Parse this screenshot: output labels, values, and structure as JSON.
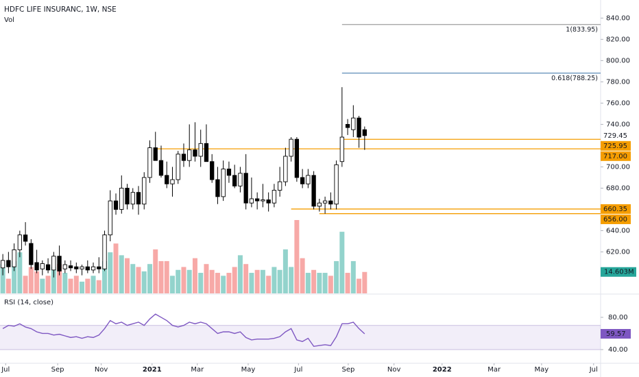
{
  "chart_data": {
    "type": "candlestick",
    "title": "HDFC LIFE INSURANC, 1W, NSE",
    "volume_label": "Vol",
    "x": [
      0,
      1,
      2,
      3,
      4,
      5,
      6,
      7,
      8,
      9,
      10,
      11,
      12,
      13,
      14,
      15,
      16,
      17,
      18,
      19,
      20,
      21,
      22,
      23,
      24,
      25,
      26,
      27,
      28,
      29,
      30,
      31,
      32,
      33,
      34,
      35,
      36,
      37,
      38,
      39,
      40,
      41,
      42,
      43,
      44,
      45,
      46,
      47,
      48,
      49,
      50,
      51,
      52,
      53,
      54,
      55,
      56,
      57,
      58,
      59,
      60,
      61,
      62,
      63,
      64
    ],
    "xlim": [
      -0.5,
      105.5
    ],
    "xticks": [
      {
        "value": 0.5,
        "label": "Jul"
      },
      {
        "value": 9.7,
        "label": "Sep"
      },
      {
        "value": 17.4,
        "label": "Nov"
      },
      {
        "value": 26.4,
        "label": "2021"
      },
      {
        "value": 34.4,
        "label": "Mar"
      },
      {
        "value": 43.4,
        "label": "May"
      },
      {
        "value": 52.3,
        "label": "Jul"
      },
      {
        "value": 61.1,
        "label": "Sep"
      },
      {
        "value": 69.2,
        "label": "Nov"
      },
      {
        "value": 77.7,
        "label": "2022"
      },
      {
        "value": 86.9,
        "label": "Mar"
      },
      {
        "value": 95.3,
        "label": "May"
      },
      {
        "value": 104.5,
        "label": "Jul"
      }
    ],
    "ylim": [
      581,
      857
    ],
    "yticks": [
      {
        "value": 620,
        "label": "620.00"
      },
      {
        "value": 640,
        "label": "640.00"
      },
      {
        "value": 680,
        "label": "680.00"
      },
      {
        "value": 700,
        "label": "700.00"
      },
      {
        "value": 740,
        "label": "740.00"
      },
      {
        "value": 760,
        "label": "760.00"
      },
      {
        "value": 780,
        "label": "780.00"
      },
      {
        "value": 800,
        "label": "800.00"
      },
      {
        "value": 820,
        "label": "820.00"
      },
      {
        "value": 840,
        "label": "840.00"
      }
    ],
    "open": [
      605,
      612,
      606,
      622,
      636,
      628,
      610,
      604,
      608,
      603,
      616,
      604,
      607,
      606,
      604,
      606,
      603,
      606,
      604,
      636,
      668,
      660,
      680,
      665,
      676,
      665,
      690,
      718,
      706,
      692,
      684,
      688,
      712,
      706,
      716,
      710,
      722,
      705,
      688,
      672,
      698,
      692,
      682,
      694,
      666,
      670,
      668,
      669,
      666,
      678,
      686,
      710,
      726,
      690,
      684,
      692,
      663,
      666,
      668,
      665,
      705,
      740,
      735,
      746,
      735
    ],
    "high": [
      618,
      620,
      628,
      640,
      648,
      632,
      622,
      612,
      614,
      620,
      626,
      612,
      612,
      610,
      608,
      612,
      610,
      615,
      640,
      678,
      675,
      692,
      684,
      680,
      682,
      695,
      725,
      733,
      720,
      705,
      700,
      715,
      722,
      740,
      742,
      735,
      740,
      712,
      700,
      706,
      705,
      702,
      700,
      712,
      690,
      676,
      684,
      676,
      684,
      700,
      718,
      728,
      728,
      698,
      698,
      696,
      670,
      672,
      676,
      706,
      775,
      745,
      758,
      748,
      738
    ],
    "low": [
      598,
      600,
      602,
      615,
      626,
      604,
      600,
      598,
      600,
      596,
      598,
      600,
      602,
      600,
      598,
      600,
      600,
      600,
      602,
      630,
      655,
      656,
      660,
      660,
      655,
      660,
      685,
      708,
      690,
      680,
      672,
      684,
      700,
      700,
      705,
      700,
      705,
      685,
      665,
      668,
      685,
      680,
      676,
      660,
      662,
      660,
      662,
      658,
      662,
      672,
      682,
      705,
      686,
      680,
      680,
      660,
      658,
      656,
      660,
      660,
      700,
      730,
      728,
      718,
      716
    ],
    "close": [
      612,
      606,
      622,
      636,
      630,
      608,
      603,
      609,
      603,
      616,
      602,
      608,
      605,
      604,
      606,
      603,
      606,
      604,
      636,
      668,
      660,
      680,
      665,
      676,
      665,
      690,
      718,
      706,
      692,
      684,
      688,
      712,
      706,
      716,
      710,
      722,
      705,
      688,
      672,
      698,
      692,
      682,
      694,
      666,
      670,
      668,
      669,
      666,
      678,
      686,
      710,
      726,
      690,
      684,
      692,
      663,
      666,
      668,
      665,
      702,
      728,
      737,
      746,
      728,
      729.45
    ],
    "up_color": "#ffffff",
    "down_color": "#000000",
    "outline_color": "#000000",
    "volume": {
      "values": [
        20,
        10,
        22,
        28,
        12,
        18,
        15,
        10,
        12,
        18,
        20,
        14,
        10,
        12,
        8,
        10,
        12,
        9,
        22,
        28,
        34,
        26,
        24,
        20,
        18,
        15,
        20,
        30,
        22,
        22,
        12,
        16,
        18,
        16,
        24,
        14,
        20,
        16,
        14,
        12,
        14,
        18,
        26,
        20,
        14,
        16,
        16,
        12,
        18,
        16,
        30,
        18,
        50,
        24,
        14,
        16,
        14,
        14,
        12,
        22,
        42,
        14,
        22,
        10,
        14.603
      ],
      "ylim": [
        0,
        200
      ],
      "last_label": "14.603M",
      "up_color": "#93d3cc",
      "down_color": "#f7a9a7",
      "label_color": "#26a69a"
    },
    "levels": [
      {
        "value": 833.95,
        "label": "1(833.95)",
        "color": "#9e9e9e",
        "x_start": 60
      },
      {
        "value": 788.25,
        "label": "0.618(788.25)",
        "color": "#5b8cb8",
        "x_start": 60
      },
      {
        "value": 725.95,
        "color": "#f59d00",
        "x_start": 60
      },
      {
        "value": 717,
        "axis_label": "717.00",
        "color": "#f59d00",
        "x_start": 27
      },
      {
        "value": 660.35,
        "color": "#f59d00",
        "x_start": 51
      },
      {
        "value": 656,
        "axis_label": "656.00",
        "color": "#f59d00",
        "x_start": 56
      }
    ],
    "rsi": {
      "label": "RSI (14, close)",
      "values": [
        66,
        70,
        69,
        72,
        68,
        66,
        62,
        60,
        60,
        58,
        59,
        57,
        55,
        56,
        54,
        56,
        55,
        58,
        66,
        76,
        72,
        74,
        70,
        72,
        74,
        70,
        78,
        84,
        80,
        76,
        70,
        68,
        70,
        74,
        72,
        74,
        72,
        66,
        60,
        62,
        62,
        60,
        62,
        55,
        52,
        53,
        53,
        53,
        54,
        56,
        62,
        66,
        52,
        50,
        54,
        44,
        45,
        46,
        45,
        56,
        72,
        72,
        74,
        66,
        59.57
      ],
      "ylim": [
        23,
        108
      ],
      "yticks": [
        {
          "value": 80,
          "label": "80.00"
        },
        {
          "value": 40,
          "label": "40.00"
        }
      ],
      "band": [
        70,
        40
      ],
      "color": "#7e57c2"
    }
  }
}
